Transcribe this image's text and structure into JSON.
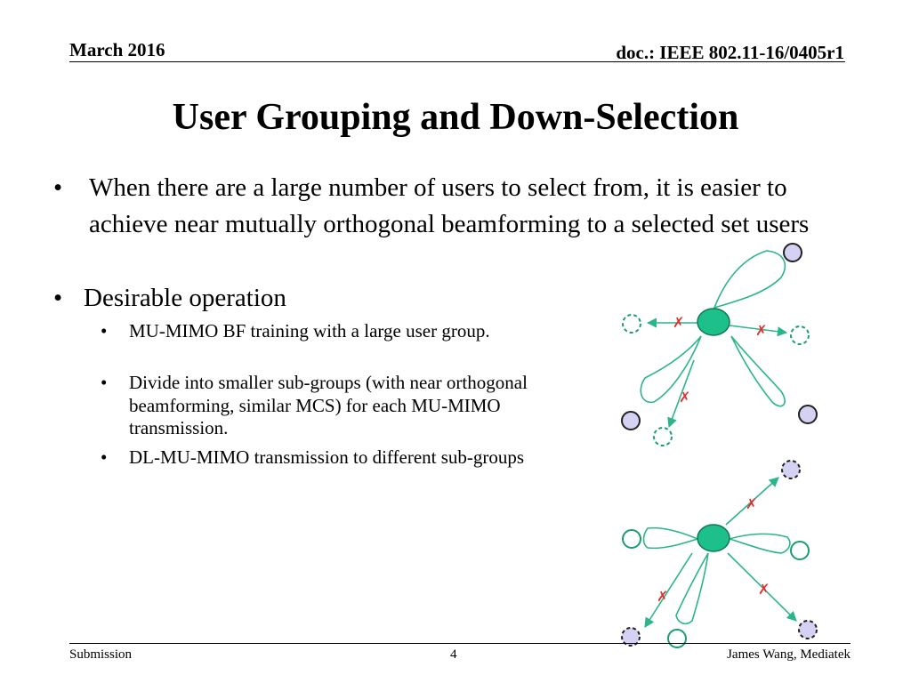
{
  "header": {
    "date": "March 2016",
    "doc": "doc.: IEEE 802.11-16/0405r1"
  },
  "title": "User Grouping and Down-Selection",
  "bullets": [
    {
      "text": "When there are a large number of users to select from, it is easier to achieve near mutually orthogonal beamforming to a selected set users"
    },
    {
      "text": "Desirable operation",
      "subbullets": [
        "MU-MIMO BF training with a large user group.",
        "Divide into smaller sub-groups (with near orthogonal beamforming, similar MCS) for each MU-MIMO transmission.",
        "DL-MU-MIMO transmission to different sub-groups"
      ]
    }
  ],
  "bullet_glyph": "•",
  "footer": {
    "left": "Submission",
    "page": "4",
    "right": "James Wang, Mediatek"
  },
  "colors": {
    "ap_fill": "#1dbf8a",
    "ap_stroke": "#0d7a55",
    "user_fill": "#d4d2f2",
    "beam_stroke": "#2bb58a",
    "block_mark": "#e03030"
  }
}
